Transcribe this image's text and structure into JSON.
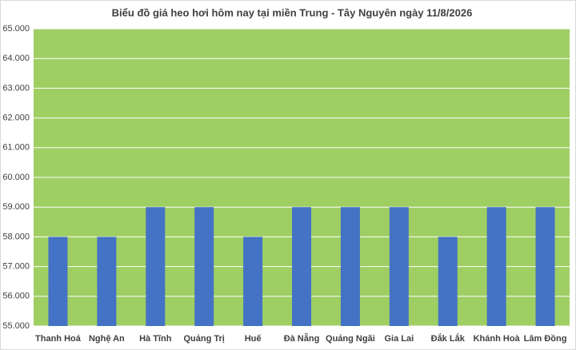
{
  "chart_data": {
    "type": "bar",
    "title": "Biểu đồ giá heo hơi hôm nay tại miền Trung - Tây Nguyên ngày 11/8/2026",
    "categories": [
      "Thanh Hoá",
      "Nghệ An",
      "Hà Tĩnh",
      "Quảng Trị",
      "Huế",
      "Đà Nẵng",
      "Quảng Ngãi",
      "Gia Lai",
      "Đắk Lắk",
      "Khánh Hoà",
      "Lâm Đồng"
    ],
    "values": [
      58000,
      58000,
      59000,
      59000,
      58000,
      59000,
      59000,
      59000,
      58000,
      59000,
      59000
    ],
    "color": "#4472c4",
    "plot_background": "#9fce63",
    "ylim": [
      55000,
      65000
    ],
    "yticks": [
      {
        "value": 55000,
        "label": "55.000"
      },
      {
        "value": 56000,
        "label": "56.000"
      },
      {
        "value": 57000,
        "label": "57.000"
      },
      {
        "value": 58000,
        "label": "58.000"
      },
      {
        "value": 59000,
        "label": "59.000"
      },
      {
        "value": 60000,
        "label": "60.000"
      },
      {
        "value": 61000,
        "label": "61.000"
      },
      {
        "value": 62000,
        "label": "62.000"
      },
      {
        "value": 63000,
        "label": "63.000"
      },
      {
        "value": 64000,
        "label": "64.000"
      },
      {
        "value": 65000,
        "label": "65.000"
      }
    ],
    "grid": true
  }
}
